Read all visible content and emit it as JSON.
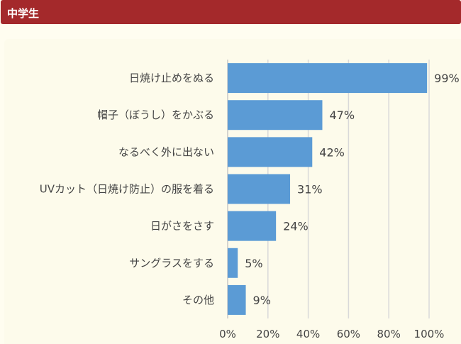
{
  "header": {
    "title": "中学生"
  },
  "colors": {
    "header": "#a4292b",
    "bar": "#5b9bd5",
    "background": "#fffdf0"
  },
  "chart_data": {
    "type": "bar",
    "orientation": "horizontal",
    "categories": [
      "日焼け止めをぬる",
      "帽子（ぼうし）をかぶる",
      "なるべく外に出ない",
      "UVカット（日焼け防止）の服を着る",
      "日がさをさす",
      "サングラスをする",
      "その他"
    ],
    "values": [
      99,
      47,
      42,
      31,
      24,
      5,
      9
    ],
    "data_labels": [
      "99%",
      "47%",
      "42%",
      "31%",
      "24%",
      "5%",
      "9%"
    ],
    "xlim": [
      0,
      100
    ],
    "xticks": [
      "0%",
      "20%",
      "40%",
      "60%",
      "80%",
      "100%"
    ],
    "grid": true,
    "legend": "none"
  }
}
